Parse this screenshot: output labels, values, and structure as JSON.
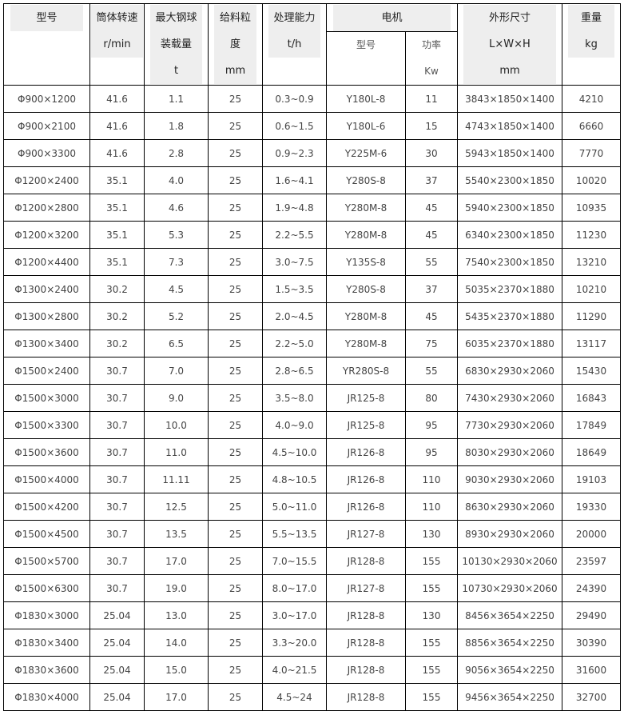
{
  "header": {
    "model": [
      "型号"
    ],
    "speed": [
      "筒体转速",
      "r/min"
    ],
    "ball_load": [
      "最大钢球",
      "装载量",
      "t"
    ],
    "feed_size": [
      "给料粒",
      "度",
      "mm"
    ],
    "capacity": [
      "处理能力",
      "t/h"
    ],
    "motor": "电机",
    "motor_model": [
      "型号"
    ],
    "motor_power": [
      "功率",
      "Kw"
    ],
    "dimensions": [
      "外形尺寸",
      "L×W×H",
      "mm"
    ],
    "weight": [
      "重量",
      "kg"
    ]
  },
  "rows": [
    [
      "Φ900×1200",
      "41.6",
      "1.1",
      "25",
      "0.3~0.9",
      "Y180L-8",
      "11",
      "3843×1850×1400",
      "4210"
    ],
    [
      "Φ900×2100",
      "41.6",
      "1.8",
      "25",
      "0.6~1.5",
      "Y180L-6",
      "15",
      "4743×1850×1400",
      "6660"
    ],
    [
      "Φ900×3300",
      "41.6",
      "2.8",
      "25",
      "0.9~2.3",
      "Y225M-6",
      "30",
      "5943×1850×1400",
      "7770"
    ],
    [
      "Φ1200×2400",
      "35.1",
      "4.0",
      "25",
      "1.6~4.1",
      "Y280S-8",
      "37",
      "5540×2300×1850",
      "10020"
    ],
    [
      "Φ1200×2800",
      "35.1",
      "4.6",
      "25",
      "1.9~4.8",
      "Y280M-8",
      "45",
      "5940×2300×1850",
      "10935"
    ],
    [
      "Φ1200×3200",
      "35.1",
      "5.3",
      "25",
      "2.2~5.5",
      "Y280M-8",
      "45",
      "6340×2300×1850",
      "11230"
    ],
    [
      "Φ1200×4400",
      "35.1",
      "7.3",
      "25",
      "3.0~7.5",
      "Y135S-8",
      "55",
      "7540×2300×1850",
      "13210"
    ],
    [
      "Φ1300×2400",
      "30.2",
      "4.5",
      "25",
      "1.5~3.5",
      "Y280S-8",
      "37",
      "5035×2370×1880",
      "10210"
    ],
    [
      "Φ1300×2800",
      "30.2",
      "5.2",
      "25",
      "2.0~4.5",
      "Y280M-8",
      "45",
      "5435×2370×1880",
      "11290"
    ],
    [
      "Φ1300×3400",
      "30.2",
      "6.5",
      "25",
      "2.2~5.0",
      "Y280M-8",
      "75",
      "6035×2370×1880",
      "13117"
    ],
    [
      "Φ1500×2400",
      "30.7",
      "7.0",
      "25",
      "2.8~6.5",
      "YR280S-8",
      "55",
      "6830×2930×2060",
      "15430"
    ],
    [
      "Φ1500×3000",
      "30.7",
      "9.0",
      "25",
      "3.5~8.0",
      "JR125-8",
      "80",
      "7430×2930×2060",
      "16843"
    ],
    [
      "Φ1500×3300",
      "30.7",
      "10.0",
      "25",
      "4.0~9.0",
      "JR125-8",
      "95",
      "7730×2930×2060",
      "17849"
    ],
    [
      "Φ1500×3600",
      "30.7",
      "11.0",
      "25",
      "4.5~10.0",
      "JR126-8",
      "95",
      "8030×2930×2060",
      "18649"
    ],
    [
      "Φ1500×4000",
      "30.7",
      "11.11",
      "25",
      "4.8~10.5",
      "JR126-8",
      "110",
      "9030×2930×2060",
      "19103"
    ],
    [
      "Φ1500×4200",
      "30.7",
      "12.5",
      "25",
      "5.0~11.0",
      "JR126-8",
      "110",
      "8630×2930×2060",
      "19330"
    ],
    [
      "Φ1500×4500",
      "30.7",
      "13.5",
      "25",
      "5.5~13.5",
      "JR127-8",
      "130",
      "8930×2930×2060",
      "20000"
    ],
    [
      "Φ1500×5700",
      "30.7",
      "17.0",
      "25",
      "7.0~15.5",
      "JR128-8",
      "155",
      "10130×2930×2060",
      "23597"
    ],
    [
      "Φ1500×6300",
      "30.7",
      "19.0",
      "25",
      "8.0~17.0",
      "JR127-8",
      "155",
      "10730×2930×2060",
      "24390"
    ],
    [
      "Φ1830×3000",
      "25.04",
      "13.0",
      "25",
      "3.0~17.0",
      "JR128-8",
      "130",
      "8456×3654×2250",
      "29490"
    ],
    [
      "Φ1830×3400",
      "25.04",
      "14.0",
      "25",
      "3.3~20.0",
      "JR128-8",
      "155",
      "8856×3654×2250",
      "30390"
    ],
    [
      "Φ1830×3600",
      "25.04",
      "15.0",
      "25",
      "4.0~21.5",
      "JR128-8",
      "155",
      "9056×3654×2250",
      "31600"
    ],
    [
      "Φ1830×4000",
      "25.04",
      "17.0",
      "25",
      "4.5~24",
      "JR128-8",
      "155",
      "9456×3654×2250",
      "32700"
    ]
  ]
}
